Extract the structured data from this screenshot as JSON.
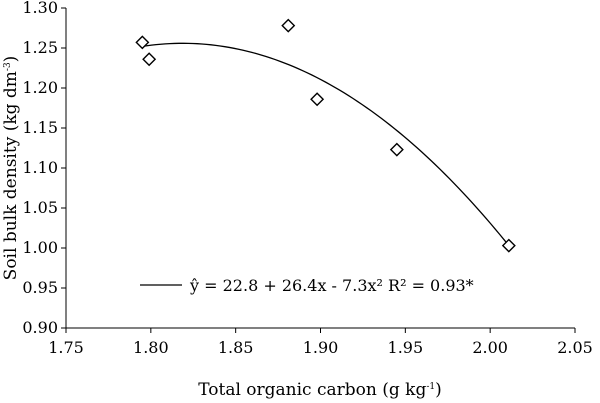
{
  "chart_data": {
    "type": "scatter",
    "xlabel": "Total organic carbon (g kg",
    "xlabel_sup": "-1",
    "xlabel_end": ")",
    "ylabel": "Soil bulk density (kg dm",
    "ylabel_sup": "-3",
    "ylabel_end": ")",
    "xlim": [
      1.75,
      2.05
    ],
    "ylim": [
      0.9,
      1.3
    ],
    "xticks": [
      "1.75",
      "1.80",
      "1.85",
      "1.90",
      "1.95",
      "2.00",
      "2.05"
    ],
    "yticks": [
      "0.90",
      "0.95",
      "1.00",
      "1.05",
      "1.10",
      "1.15",
      "1.20",
      "1.25",
      "1.30"
    ],
    "grid": false,
    "series": [
      {
        "marker": "diamond",
        "x": [
          1.795,
          1.799,
          1.881,
          1.898,
          1.945,
          2.011
        ],
        "y": [
          1.257,
          1.236,
          1.278,
          1.186,
          1.123,
          1.003
        ]
      }
    ],
    "fit": {
      "type": "quadratic",
      "a": -7.3,
      "b": 26.4,
      "c": 22.8,
      "x_range": [
        1.795,
        2.011
      ],
      "legend_label": "ŷ = 22.8 + 26.4x - 7.3x² R² = 0.93*",
      "legend_position": "bottom-center"
    }
  }
}
